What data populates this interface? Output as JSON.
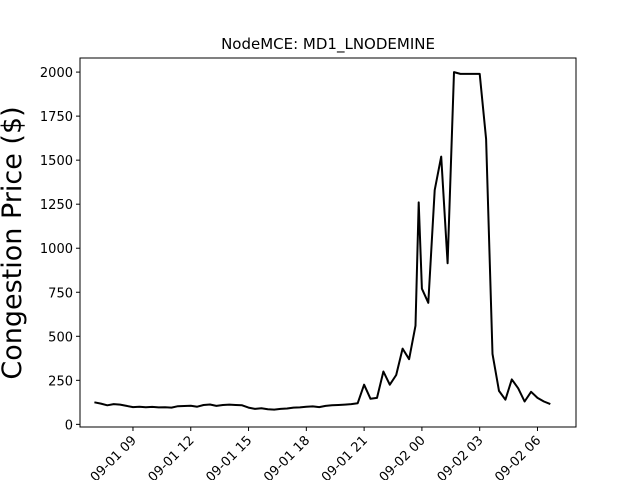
{
  "chart_data": {
    "type": "line",
    "title": "NodeMCE: MD1_LNODEMINE",
    "xlabel": "",
    "ylabel": "Congestion Price ($)",
    "ylim": [
      -15,
      2080
    ],
    "xlim": [
      "2023-09-01 06:15",
      "2023-09-02 08:00"
    ],
    "grid": false,
    "x_ticks": [
      {
        "x": "2023-09-01 09:00",
        "label": "09-01 09"
      },
      {
        "x": "2023-09-01 12:00",
        "label": "09-01 12"
      },
      {
        "x": "2023-09-01 15:00",
        "label": "09-01 15"
      },
      {
        "x": "2023-09-01 18:00",
        "label": "09-01 18"
      },
      {
        "x": "2023-09-01 21:00",
        "label": "09-01 21"
      },
      {
        "x": "2023-09-02 00:00",
        "label": "09-02 00"
      },
      {
        "x": "2023-09-02 03:00",
        "label": "09-02 03"
      },
      {
        "x": "2023-09-02 06:00",
        "label": "09-02 06"
      }
    ],
    "y_ticks": [
      0,
      250,
      500,
      750,
      1000,
      1250,
      1500,
      1750,
      2000
    ],
    "series": [
      {
        "color": "#000000",
        "x": [
          "2023-09-01 07:00",
          "2023-09-01 07:20",
          "2023-09-01 07:40",
          "2023-09-01 08:00",
          "2023-09-01 08:20",
          "2023-09-01 08:40",
          "2023-09-01 09:00",
          "2023-09-01 09:20",
          "2023-09-01 09:40",
          "2023-09-01 10:00",
          "2023-09-01 10:20",
          "2023-09-01 10:40",
          "2023-09-01 11:00",
          "2023-09-01 11:20",
          "2023-09-01 11:40",
          "2023-09-01 12:00",
          "2023-09-01 12:20",
          "2023-09-01 12:40",
          "2023-09-01 13:00",
          "2023-09-01 13:20",
          "2023-09-01 13:40",
          "2023-09-01 14:00",
          "2023-09-01 14:20",
          "2023-09-01 14:40",
          "2023-09-01 15:00",
          "2023-09-01 15:20",
          "2023-09-01 15:40",
          "2023-09-01 16:00",
          "2023-09-01 16:20",
          "2023-09-01 16:40",
          "2023-09-01 17:00",
          "2023-09-01 17:20",
          "2023-09-01 17:40",
          "2023-09-01 18:00",
          "2023-09-01 18:20",
          "2023-09-01 18:40",
          "2023-09-01 19:00",
          "2023-09-01 19:20",
          "2023-09-01 19:40",
          "2023-09-01 20:00",
          "2023-09-01 20:20",
          "2023-09-01 20:40",
          "2023-09-01 21:00",
          "2023-09-01 21:20",
          "2023-09-01 21:40",
          "2023-09-01 22:00",
          "2023-09-01 22:20",
          "2023-09-01 22:40",
          "2023-09-01 23:00",
          "2023-09-01 23:20",
          "2023-09-01 23:40",
          "2023-09-01 23:50",
          "2023-09-02 00:00",
          "2023-09-02 00:20",
          "2023-09-02 00:40",
          "2023-09-02 01:00",
          "2023-09-02 01:20",
          "2023-09-02 01:40",
          "2023-09-02 02:00",
          "2023-09-02 02:20",
          "2023-09-02 02:40",
          "2023-09-02 03:00",
          "2023-09-02 03:20",
          "2023-09-02 03:40",
          "2023-09-02 04:00",
          "2023-09-02 04:20",
          "2023-09-02 04:40",
          "2023-09-02 05:00",
          "2023-09-02 05:20",
          "2023-09-02 05:40",
          "2023-09-02 06:00",
          "2023-09-02 06:20",
          "2023-09-02 06:40"
        ],
        "y": [
          125,
          118,
          108,
          115,
          112,
          105,
          98,
          100,
          97,
          99,
          96,
          97,
          95,
          103,
          104,
          106,
          100,
          110,
          113,
          105,
          110,
          112,
          110,
          108,
          95,
          88,
          92,
          86,
          84,
          88,
          90,
          95,
          96,
          100,
          102,
          98,
          105,
          108,
          110,
          112,
          115,
          120,
          225,
          145,
          150,
          300,
          225,
          280,
          430,
          370,
          560,
          1260,
          770,
          690,
          1330,
          1520,
          915,
          2000,
          1990,
          1990,
          1990,
          1990,
          1620,
          400,
          190,
          140,
          255,
          205,
          130,
          185,
          150,
          130,
          115
        ]
      }
    ]
  }
}
